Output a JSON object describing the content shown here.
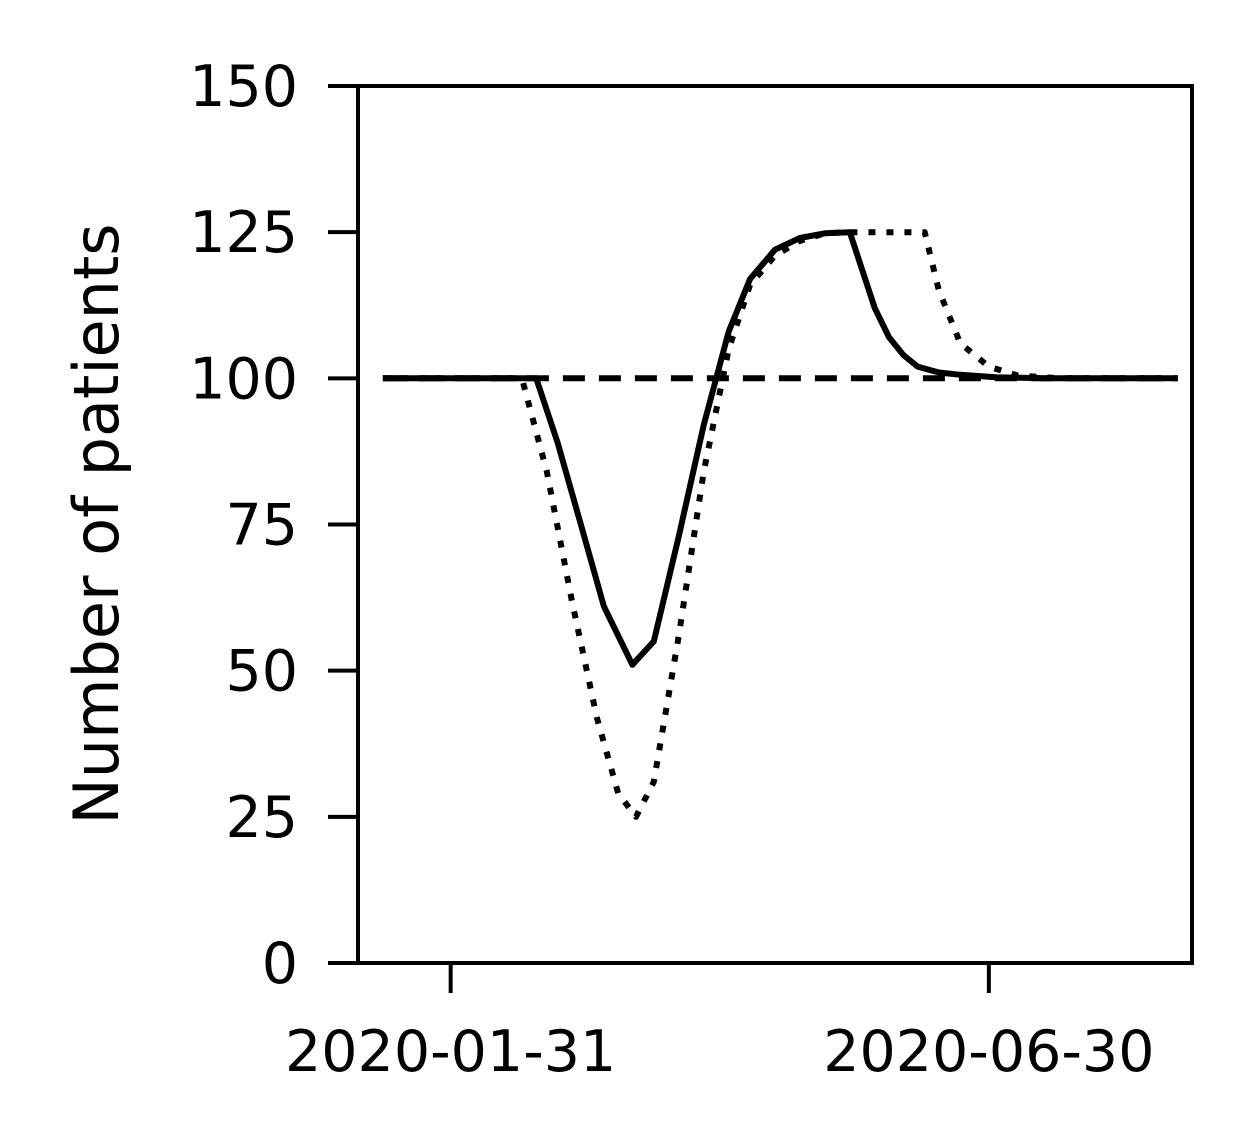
{
  "chart_data": {
    "type": "line",
    "title": "",
    "xlabel": "",
    "ylabel": "Number of patients",
    "x_axis_type": "date",
    "xlim": [
      "2020-01-05",
      "2020-08-26"
    ],
    "ylim": [
      0,
      150
    ],
    "grid": false,
    "legend": "none",
    "xticks": [
      {
        "value": "2020-01-31",
        "label": "2020-01-31"
      },
      {
        "value": "2020-06-30",
        "label": "2020-06-30"
      }
    ],
    "yticks": [
      {
        "value": 0,
        "label": "0"
      },
      {
        "value": 25,
        "label": "25"
      },
      {
        "value": 50,
        "label": "50"
      },
      {
        "value": 75,
        "label": "75"
      },
      {
        "value": 100,
        "label": "100"
      },
      {
        "value": 125,
        "label": "125"
      },
      {
        "value": 150,
        "label": "150"
      }
    ],
    "series": [
      {
        "style": "dashed",
        "color": "#000000",
        "x": [
          "2020-01-12",
          "2020-08-22"
        ],
        "y": [
          100,
          100
        ]
      },
      {
        "style": "solid",
        "color": "#000000",
        "x": [
          "2020-01-12",
          "2020-02-24",
          "2020-03-01",
          "2020-03-08",
          "2020-03-14",
          "2020-03-22",
          "2020-03-28",
          "2020-04-04",
          "2020-04-11",
          "2020-04-18",
          "2020-04-24",
          "2020-05-01",
          "2020-05-08",
          "2020-05-15",
          "2020-05-22",
          "2020-05-29",
          "2020-06-02",
          "2020-06-06",
          "2020-06-10",
          "2020-06-16",
          "2020-06-22",
          "2020-07-02",
          "2020-07-15",
          "2020-08-22"
        ],
        "y": [
          100,
          100,
          89,
          74,
          61,
          51,
          55,
          73,
          92,
          108,
          117,
          122,
          124,
          124.8,
          125,
          112,
          107,
          104,
          102,
          101,
          100.6,
          100.2,
          100,
          100
        ]
      },
      {
        "style": "dotted",
        "color": "#000000",
        "x": [
          "2020-01-12",
          "2020-02-20",
          "2020-02-27",
          "2020-03-05",
          "2020-03-12",
          "2020-03-18",
          "2020-03-23",
          "2020-03-28",
          "2020-04-04",
          "2020-04-11",
          "2020-04-18",
          "2020-04-24",
          "2020-05-01",
          "2020-05-08",
          "2020-05-15",
          "2020-05-22",
          "2020-05-29",
          "2020-06-05",
          "2020-06-12",
          "2020-06-16",
          "2020-06-22",
          "2020-06-30",
          "2020-07-08",
          "2020-07-20",
          "2020-08-22"
        ],
        "y": [
          100,
          100,
          84,
          62,
          42,
          29,
          25,
          31,
          56,
          84,
          105,
          116,
          121,
          123.5,
          124.8,
          125,
          125,
          125,
          125,
          115,
          106,
          102,
          100.5,
          100,
          100
        ]
      }
    ]
  }
}
